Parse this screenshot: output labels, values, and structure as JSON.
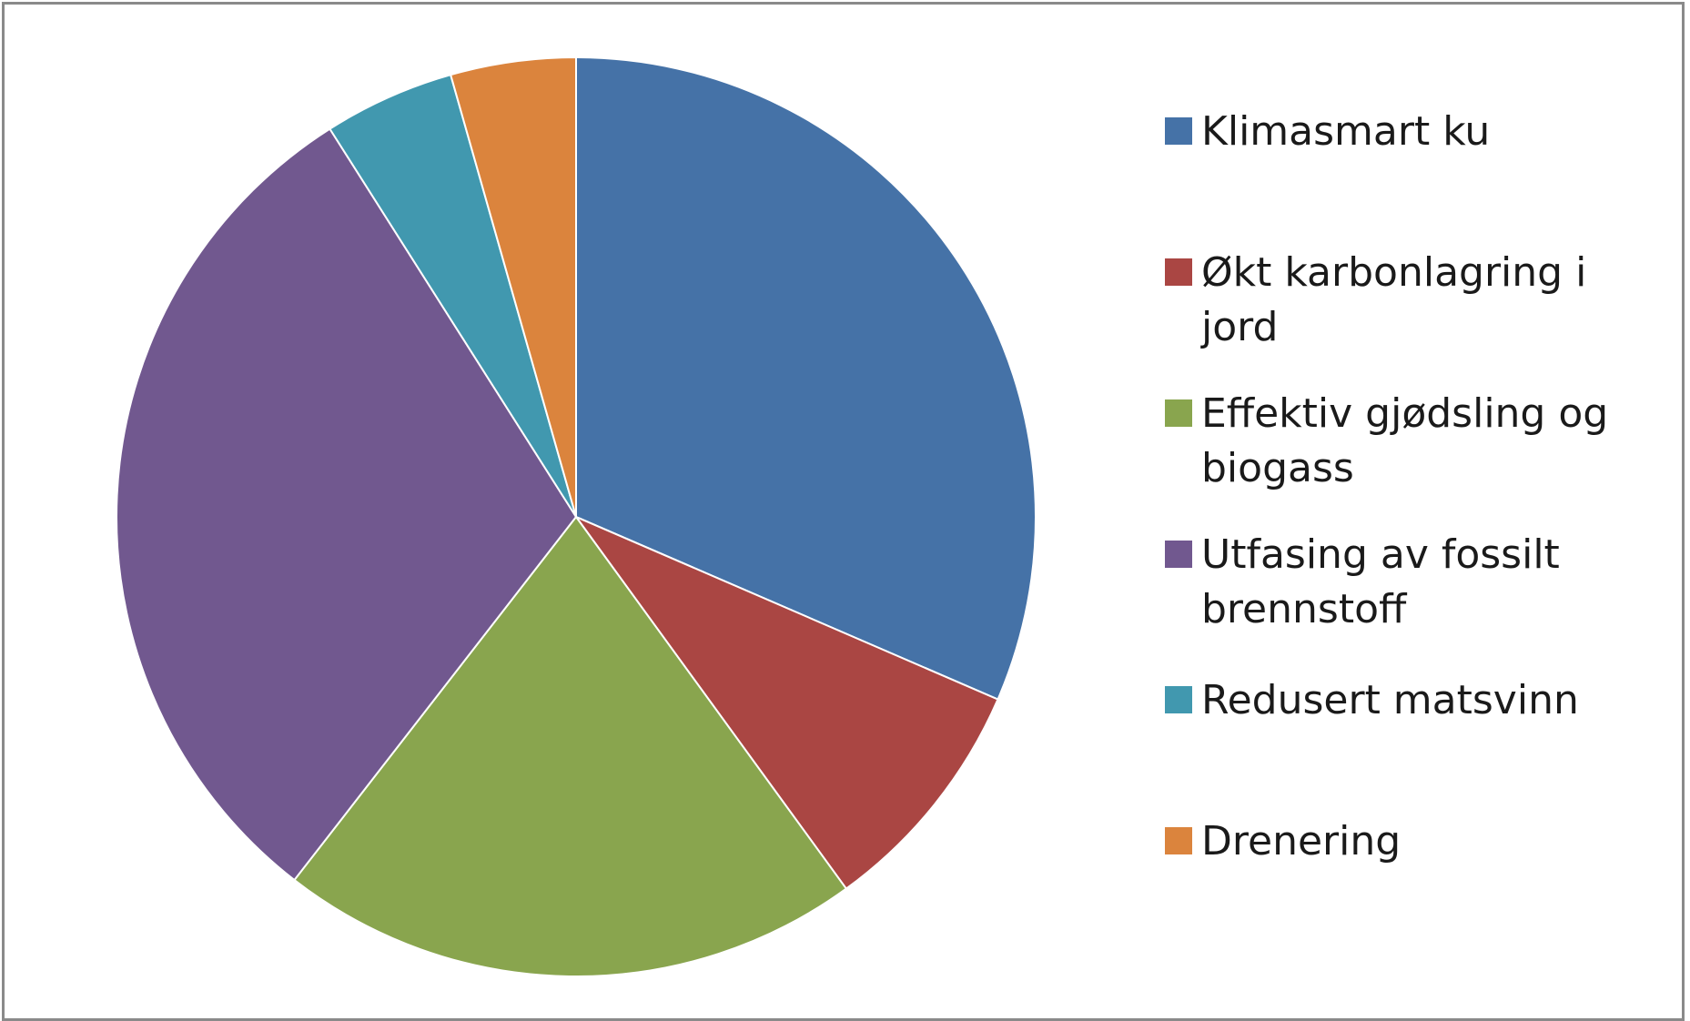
{
  "chart_data": {
    "type": "pie",
    "title": "",
    "legend_position": "right",
    "slices": [
      {
        "label": "Klimasmart ku",
        "value": 31.5,
        "color": "#4572A7"
      },
      {
        "label": "Økt karbonlagring i jord",
        "value": 8.5,
        "color": "#AA4643"
      },
      {
        "label": "Effektiv gjødsling og biogass",
        "value": 20.5,
        "color": "#89A54E"
      },
      {
        "label": "Utfasing av fossilt brennstoff",
        "value": 30.5,
        "color": "#71588F"
      },
      {
        "label": "Redusert matsvinn",
        "value": 4.6,
        "color": "#4198AF"
      },
      {
        "label": "Drenering",
        "value": 4.4,
        "color": "#DB843D"
      }
    ]
  }
}
